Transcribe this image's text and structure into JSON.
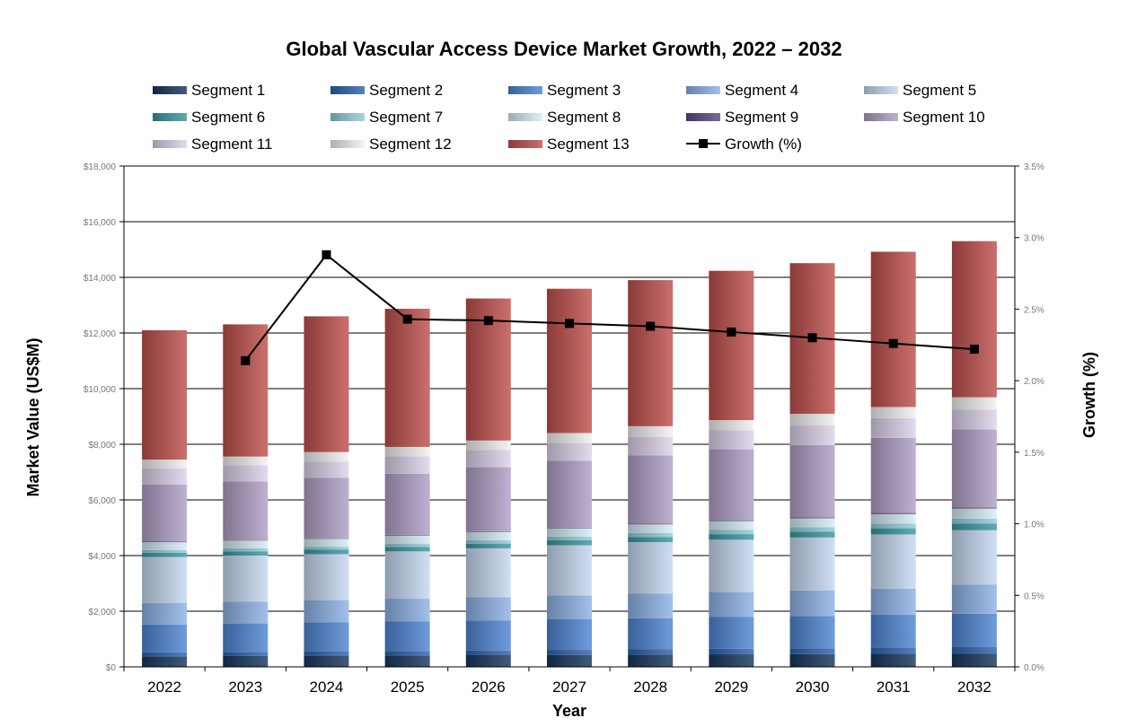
{
  "chart_data": {
    "type": "bar",
    "title": "Global Vascular Access Device Market Growth, 2022 – 2032",
    "xlabel": "Year",
    "ylabel": "Market Value (US$M)",
    "y2label": "Growth (%)",
    "categories": [
      "2022",
      "2023",
      "2024",
      "2025",
      "2026",
      "2027",
      "2028",
      "2029",
      "2030",
      "2031",
      "2032"
    ],
    "ylim": [
      0,
      18000
    ],
    "y2lim": [
      0,
      3.5
    ],
    "yticks": [
      "$0",
      "$2,000",
      "$4,000",
      "$6,000",
      "$8,000",
      "$10,000",
      "$12,000",
      "$14,000",
      "$16,000",
      "$18,000"
    ],
    "y2ticks": [
      "0.0%",
      "0.5%",
      "1.0%",
      "1.5%",
      "2.0%",
      "2.5%",
      "3.0%",
      "3.5%"
    ],
    "grid": true,
    "legend_position": "top",
    "series": [
      {
        "name": "Segment 1",
        "type": "bar",
        "color": "#17375e",
        "values": [
          380,
          390,
          400,
          410,
          420,
          430,
          440,
          450,
          460,
          470,
          480
        ]
      },
      {
        "name": "Segment 2",
        "type": "bar",
        "color": "#2e64b0",
        "values": [
          140,
          150,
          160,
          160,
          170,
          180,
          190,
          200,
          210,
          220,
          230
        ]
      },
      {
        "name": "Segment 3",
        "type": "bar",
        "color": "#4f86d4",
        "values": [
          1000,
          1020,
          1040,
          1060,
          1080,
          1100,
          1120,
          1140,
          1160,
          1180,
          1200
        ]
      },
      {
        "name": "Segment 4",
        "type": "bar",
        "color": "#8db3e6",
        "values": [
          780,
          790,
          800,
          820,
          840,
          860,
          880,
          900,
          920,
          940,
          1050
        ]
      },
      {
        "name": "Segment 5",
        "type": "bar",
        "color": "#c6d9f1",
        "values": [
          1650,
          1650,
          1650,
          1700,
          1750,
          1800,
          1850,
          1880,
          1900,
          1950,
          1950
        ]
      },
      {
        "name": "Segment 6",
        "type": "bar",
        "color": "#3c99a3",
        "values": [
          150,
          155,
          160,
          165,
          170,
          180,
          190,
          200,
          210,
          220,
          240
        ]
      },
      {
        "name": "Segment 7",
        "type": "bar",
        "color": "#93cddd",
        "values": [
          100,
          105,
          110,
          115,
          120,
          130,
          140,
          150,
          160,
          170,
          180
        ]
      },
      {
        "name": "Segment 8",
        "type": "bar",
        "color": "#d4eef4",
        "values": [
          280,
          280,
          280,
          290,
          300,
          300,
          310,
          320,
          320,
          340,
          360
        ]
      },
      {
        "name": "Segment 9",
        "type": "bar",
        "color": "#5e4a86",
        "values": [
          20,
          20,
          20,
          25,
          25,
          25,
          30,
          30,
          35,
          40,
          40
        ]
      },
      {
        "name": "Segment 10",
        "type": "bar",
        "color": "#b1a0c7",
        "values": [
          2050,
          2100,
          2180,
          2200,
          2300,
          2400,
          2450,
          2550,
          2600,
          2700,
          2800
        ]
      },
      {
        "name": "Segment 11",
        "type": "bar",
        "color": "#ddd3ea",
        "values": [
          590,
          580,
          580,
          620,
          620,
          640,
          660,
          680,
          700,
          710,
          710
        ]
      },
      {
        "name": "Segment 12",
        "type": "bar",
        "color": "#f2f2f2",
        "values": [
          310,
          320,
          340,
          340,
          340,
          360,
          390,
          370,
          420,
          400,
          450
        ]
      },
      {
        "name": "Segment 13",
        "type": "bar",
        "color": "#c0504d",
        "values": [
          4650,
          4750,
          4880,
          4965,
          5105,
          5185,
          5250,
          5365,
          5415,
          5580,
          5610
        ]
      },
      {
        "name": "Growth (%)",
        "type": "line",
        "axis": "right",
        "color": "#000000",
        "values": [
          null,
          2.14,
          2.88,
          2.43,
          2.42,
          2.4,
          2.38,
          2.34,
          2.3,
          2.26,
          2.22
        ]
      }
    ]
  }
}
